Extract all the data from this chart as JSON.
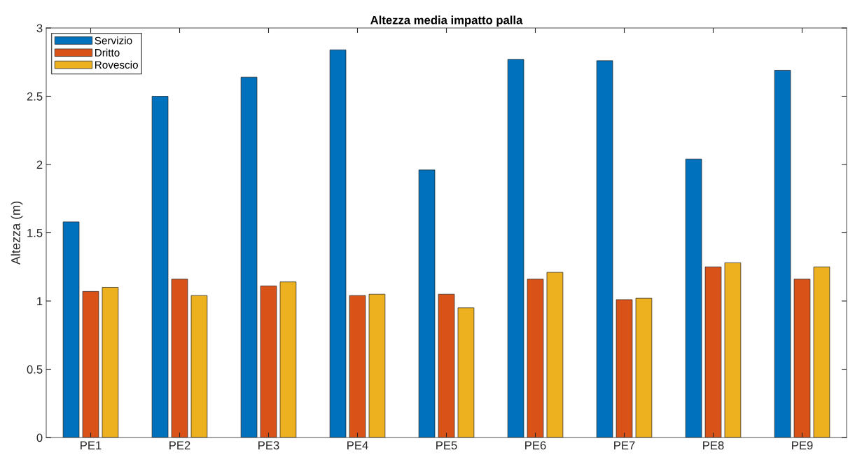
{
  "chart_data": {
    "type": "bar",
    "title": "Altezza media impatto palla",
    "ylabel": "Altezza (m)",
    "categories": [
      "PE1",
      "PE2",
      "PE3",
      "PE4",
      "PE5",
      "PE6",
      "PE7",
      "PE8",
      "PE9"
    ],
    "series": [
      {
        "name": "Servizio",
        "color": "#0072bd",
        "values": [
          1.58,
          2.5,
          2.64,
          2.84,
          1.96,
          2.77,
          2.76,
          2.04,
          2.69
        ]
      },
      {
        "name": "Dritto",
        "color": "#d95319",
        "values": [
          1.07,
          1.16,
          1.11,
          1.04,
          1.05,
          1.16,
          1.01,
          1.25,
          1.16
        ]
      },
      {
        "name": "Rovescio",
        "color": "#edb120",
        "values": [
          1.1,
          1.04,
          1.14,
          1.05,
          0.95,
          1.21,
          1.02,
          1.28,
          1.25
        ]
      }
    ],
    "ylim": [
      0,
      3
    ],
    "yticks": [
      0,
      0.5,
      1,
      1.5,
      2,
      2.5,
      3
    ],
    "grid": false,
    "legend": "top left"
  }
}
